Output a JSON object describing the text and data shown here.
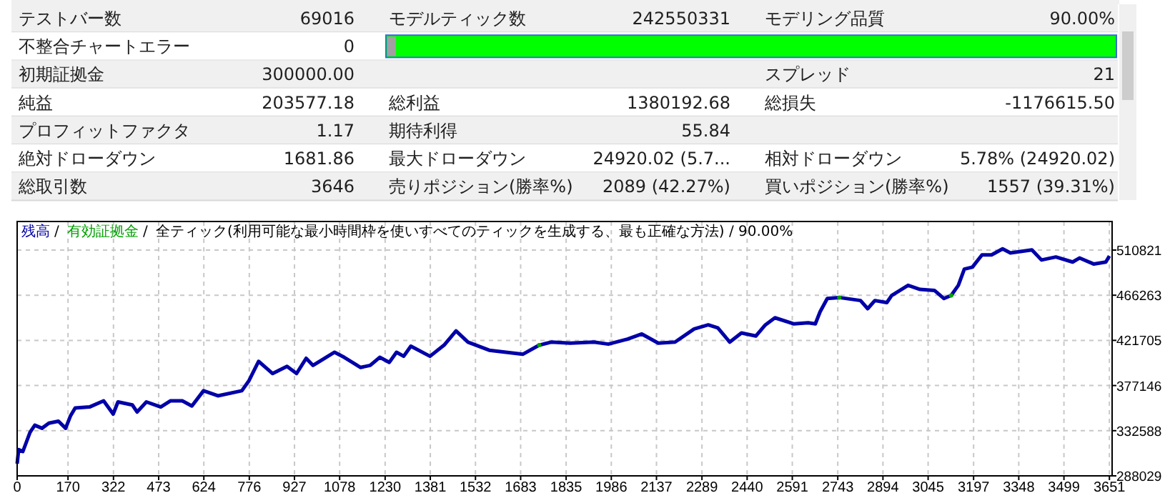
{
  "chart_data": [
    {
      "type": "other",
      "cells": [
        [
          "テストバー数",
          "69016",
          "モデルティック数",
          "242550331",
          "モデリング品質",
          "90.00%"
        ],
        [
          "不整合チャートエラー",
          "0",
          null,
          null,
          null,
          null
        ],
        [
          "初期証拠金",
          "300000.00",
          null,
          null,
          "スプレッド",
          "21"
        ],
        [
          "純益",
          "203577.18",
          "総利益",
          "1380192.68",
          "総損失",
          "-1176615.50"
        ],
        [
          "プロフィットファクタ",
          "1.17",
          "期待利得",
          "55.84",
          null,
          null
        ],
        [
          "絶対ドローダウン",
          "1681.86",
          "最大ドローダウン",
          "24920.02 (5.7...",
          "相対ドローダウン",
          "5.78% (24920.02)"
        ],
        [
          "総取引数",
          "3646",
          "売りポジション(勝率%)",
          "2089 (42.27%)",
          "買いポジション(勝率%)",
          "1557 (39.31%)"
        ]
      ]
    },
    {
      "type": "line",
      "title": "全ティック(利用可能な最小時間枠を使いすべてのティックを生成する、最も正確な方法) / 90.00%",
      "legend": "top left",
      "grid": true,
      "xlim": [
        0,
        3660
      ],
      "xticks": [
        0,
        170,
        322,
        473,
        624,
        776,
        927,
        1078,
        1230,
        1381,
        1532,
        1683,
        1835,
        1986,
        2137,
        2289,
        2440,
        2591,
        2743,
        2894,
        3045,
        3197,
        3348,
        3499,
        3651
      ],
      "ylim": [
        288029,
        539000
      ],
      "yticks": [
        288029,
        332588,
        377146,
        421705,
        466263,
        510821
      ],
      "series": [
        {
          "name": "残高",
          "color": "#0000a8",
          "x": [
            0,
            5,
            19,
            43,
            59,
            83,
            106,
            138,
            162,
            178,
            194,
            242,
            289,
            321,
            337,
            385,
            401,
            432,
            480,
            512,
            552,
            584,
            623,
            671,
            751,
            775,
            807,
            854,
            902,
            934,
            966,
            989,
            1061,
            1093,
            1148,
            1180,
            1212,
            1244,
            1268,
            1292,
            1316,
            1380,
            1427,
            1467,
            1507,
            1578,
            1634,
            1690,
            1745,
            1785,
            1849,
            1928,
            1976,
            2040,
            2088,
            2143,
            2199,
            2263,
            2310,
            2342,
            2382,
            2421,
            2469,
            2501,
            2533,
            2597,
            2644,
            2668,
            2684,
            2708,
            2748,
            2819,
            2843,
            2867,
            2907,
            2923,
            2978,
            3018,
            3066,
            3098,
            3122,
            3146,
            3166,
            3193,
            3225,
            3257,
            3294,
            3320,
            3392,
            3424,
            3472,
            3528,
            3551,
            3599,
            3639,
            3651
          ],
          "values": [
            300000,
            314000,
            312000,
            331000,
            338000,
            335000,
            340000,
            342000,
            335000,
            347000,
            355000,
            356000,
            362000,
            349000,
            361000,
            358000,
            351000,
            361000,
            356000,
            362000,
            362000,
            357000,
            372000,
            367000,
            372000,
            382000,
            401000,
            389000,
            396000,
            389000,
            404000,
            397000,
            410000,
            405000,
            395000,
            397000,
            405000,
            400000,
            410000,
            406000,
            416000,
            406000,
            417000,
            431000,
            420000,
            412000,
            410000,
            408000,
            417000,
            420000,
            419000,
            420000,
            418000,
            423000,
            428000,
            419000,
            420000,
            433000,
            437000,
            434000,
            420000,
            429000,
            426000,
            437000,
            444000,
            438000,
            439000,
            438000,
            450000,
            463000,
            464000,
            461000,
            453000,
            461000,
            459000,
            466000,
            476000,
            472000,
            471000,
            463000,
            466000,
            476000,
            492000,
            494000,
            506000,
            506000,
            512000,
            508000,
            511000,
            501000,
            504000,
            499000,
            503000,
            497000,
            499000,
            505000
          ]
        },
        {
          "name": "有効証拠金",
          "type": "scatter",
          "marker": "circle",
          "color": "#00a000",
          "x": [
            1745,
            2748,
            3122
          ],
          "values": [
            417000,
            464000,
            466000
          ]
        }
      ],
      "annotations": [
        "/",
        "/"
      ]
    }
  ]
}
